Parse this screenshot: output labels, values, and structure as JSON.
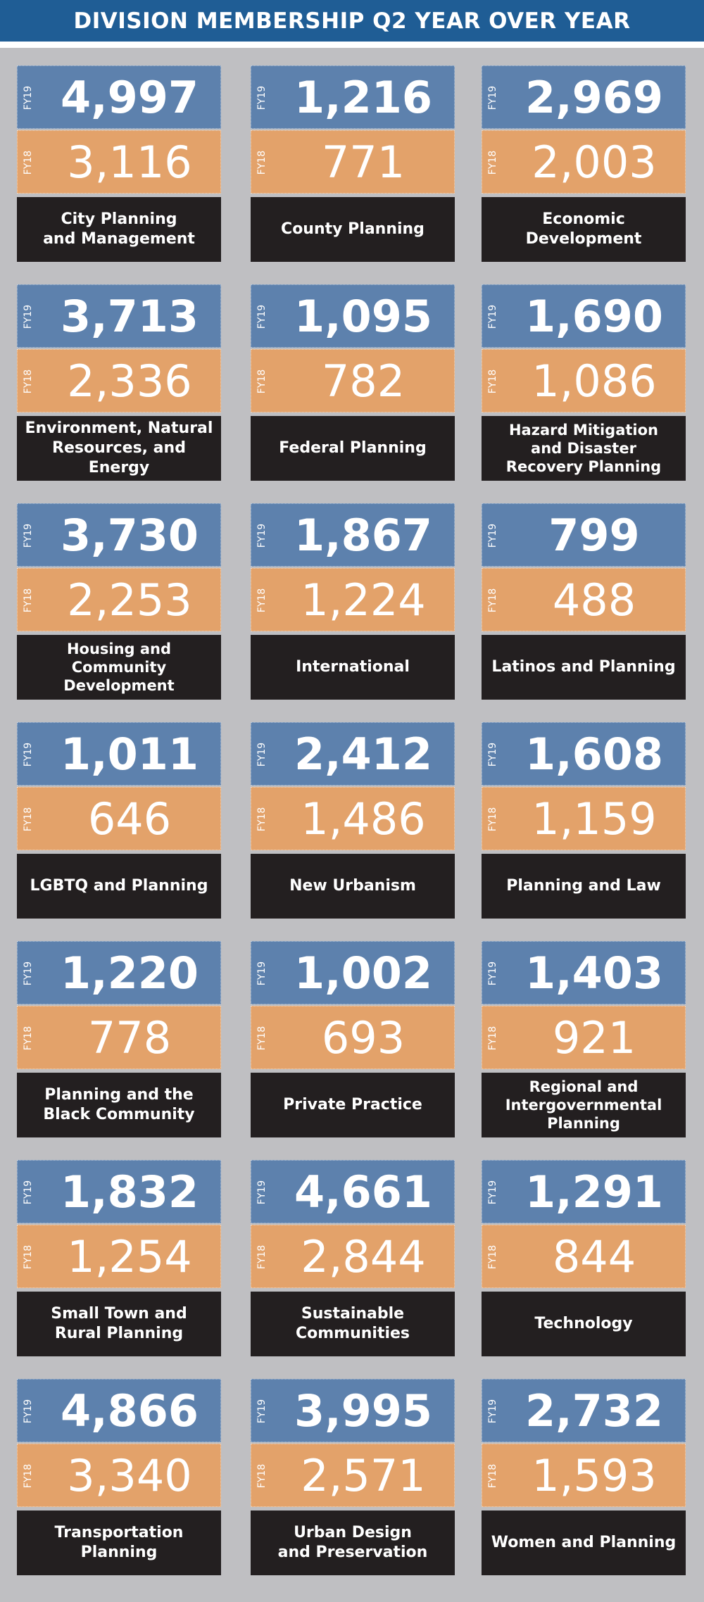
{
  "title": "DIVISION MEMBERSHIP Q2 YEAR OVER YEAR",
  "fy19_label": "FY19",
  "fy18_label": "FY18",
  "colors": {
    "header": "#1f5d95",
    "fy19": "#5d81ad",
    "fy18": "#e3a26a",
    "name": "#231f20",
    "background": "#bfbfc2"
  },
  "chart_data": {
    "type": "table",
    "title": "DIVISION MEMBERSHIP Q2 YEAR OVER YEAR",
    "series": [
      {
        "name": "FY19",
        "values": [
          4997,
          1216,
          2969,
          3713,
          1095,
          1690,
          3730,
          1867,
          799,
          1011,
          2412,
          1608,
          1220,
          1002,
          1403,
          1832,
          4661,
          1291,
          4866,
          3995,
          2732
        ]
      },
      {
        "name": "FY18",
        "values": [
          3116,
          771,
          2003,
          2336,
          782,
          1086,
          2253,
          1224,
          488,
          646,
          1486,
          1159,
          778,
          693,
          921,
          1254,
          2844,
          844,
          3340,
          2571,
          1593
        ]
      }
    ],
    "divisions": [
      {
        "name": "City Planning\nand Management",
        "fy19": "4,997",
        "fy18": "3,116"
      },
      {
        "name": "County Planning",
        "fy19": "1,216",
        "fy18": "771"
      },
      {
        "name": "Economic\nDevelopment",
        "fy19": "2,969",
        "fy18": "2,003"
      },
      {
        "name": "Environment, Natural\nResources, and Energy",
        "fy19": "3,713",
        "fy18": "2,336"
      },
      {
        "name": "Federal Planning",
        "fy19": "1,095",
        "fy18": "782"
      },
      {
        "name": "Hazard Mitigation\nand Disaster\nRecovery Planning",
        "fy19": "1,690",
        "fy18": "1,086"
      },
      {
        "name": "Housing and\nCommunity\nDevelopment",
        "fy19": "3,730",
        "fy18": "2,253"
      },
      {
        "name": "International",
        "fy19": "1,867",
        "fy18": "1,224"
      },
      {
        "name": "Latinos and Planning",
        "fy19": "799",
        "fy18": "488"
      },
      {
        "name": "LGBTQ and Planning",
        "fy19": "1,011",
        "fy18": "646"
      },
      {
        "name": "New Urbanism",
        "fy19": "2,412",
        "fy18": "1,486"
      },
      {
        "name": "Planning and Law",
        "fy19": "1,608",
        "fy18": "1,159"
      },
      {
        "name": "Planning and the\nBlack Community",
        "fy19": "1,220",
        "fy18": "778"
      },
      {
        "name": "Private Practice",
        "fy19": "1,002",
        "fy18": "693"
      },
      {
        "name": "Regional and\nIntergovernmental\nPlanning",
        "fy19": "1,403",
        "fy18": "921"
      },
      {
        "name": "Small Town and\nRural Planning",
        "fy19": "1,832",
        "fy18": "1,254"
      },
      {
        "name": "Sustainable\nCommunities",
        "fy19": "4,661",
        "fy18": "2,844"
      },
      {
        "name": "Technology",
        "fy19": "1,291",
        "fy18": "844"
      },
      {
        "name": "Transportation\nPlanning",
        "fy19": "4,866",
        "fy18": "3,340"
      },
      {
        "name": "Urban Design\nand Preservation",
        "fy19": "3,995",
        "fy18": "2,571"
      },
      {
        "name": "Women and Planning",
        "fy19": "2,732",
        "fy18": "1,593"
      }
    ]
  }
}
